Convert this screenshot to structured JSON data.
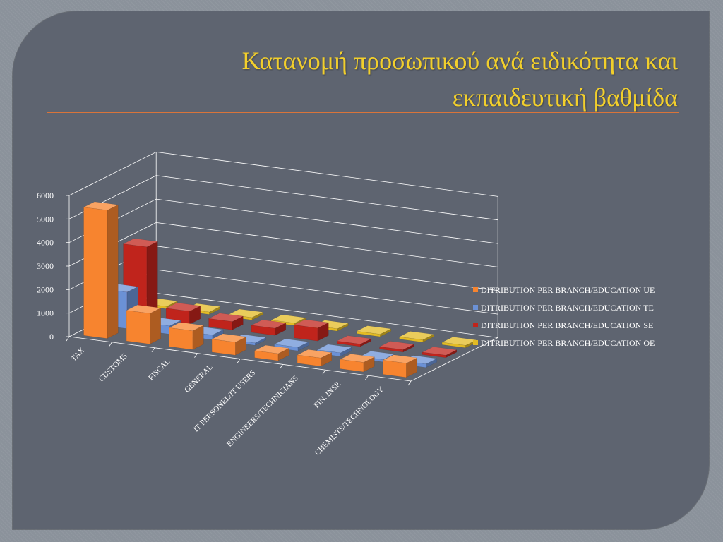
{
  "slide": {
    "title_line1": "Κατανομή προσωπικού ανά ειδικότητα και",
    "title_line2": "εκπαιδευτική βαθμίδα"
  },
  "chart_data": {
    "type": "bar",
    "style": "3d-clustered-depth",
    "categories": [
      "TAX",
      "CUSTOMS",
      "FISCAL",
      "GENERAL",
      "IT PERSONEL/IT USERS",
      "ENGINEERS/TECHNICIANS",
      "FIN. INSP.",
      "CHEMISTS/TECHNOLOGY"
    ],
    "series": [
      {
        "name": "DITRIBUTION PER BRANCH/EDUCATION UE",
        "color": "#f7842f",
        "values": [
          5450,
          1300,
          800,
          550,
          300,
          350,
          400,
          600
        ]
      },
      {
        "name": "DITRIBUTION PER BRANCH/EDUCATION TE",
        "color": "#6b91d6",
        "values": [
          1550,
          350,
          200,
          100,
          150,
          150,
          100,
          150
        ]
      },
      {
        "name": "DITRIBUTION PER BRANCH/EDUCATION SE",
        "color": "#c0241c",
        "values": [
          3050,
          550,
          350,
          300,
          550,
          100,
          100,
          100
        ]
      },
      {
        "name": "DITRIBUTION PER BRANCH/EDUCATION OE",
        "color": "#e3bb24",
        "values": [
          100,
          100,
          100,
          100,
          100,
          100,
          100,
          100
        ]
      }
    ],
    "yticks": [
      0,
      1000,
      2000,
      3000,
      4000,
      5000,
      6000
    ],
    "ylim": [
      0,
      6000
    ],
    "grid": true,
    "legend": "right"
  }
}
